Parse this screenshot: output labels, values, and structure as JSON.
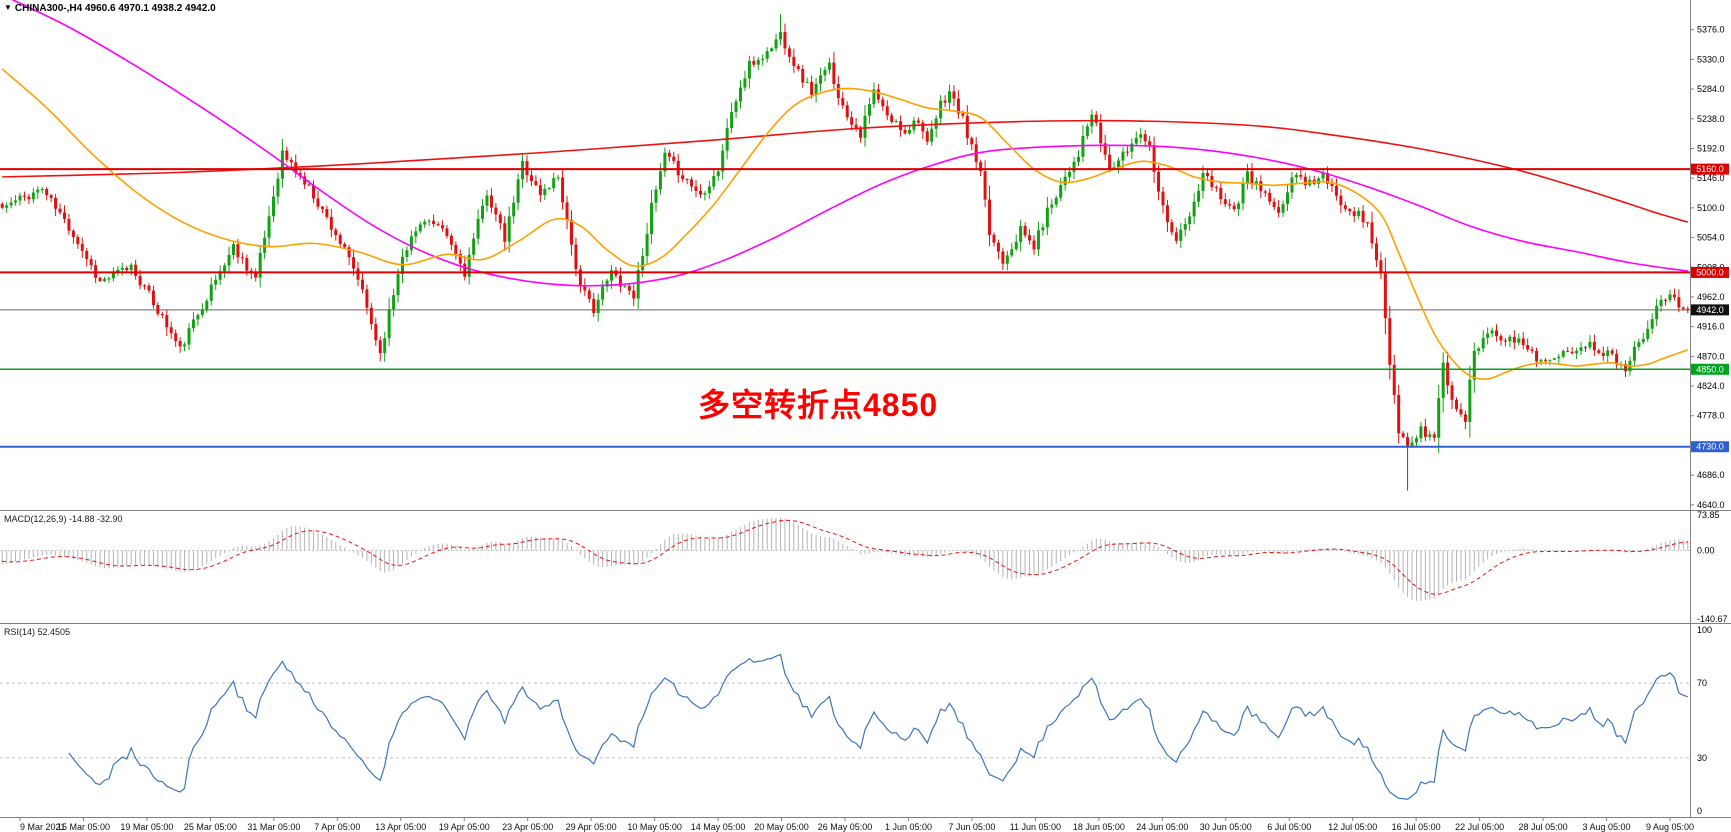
{
  "header": {
    "collapse_icon": "▼",
    "symbol": "CHINA300-,H4",
    "ohlc": "4960.6 4970.1 4938.2 4942.0"
  },
  "annotation": {
    "text": "多空转折点4850",
    "color": "#ff0000"
  },
  "indicator_labels": {
    "macd": "MACD(12,26,9) -14.88 -32.90",
    "rsi": "RSI(14) 52.4505"
  },
  "colors": {
    "bg": "#ffffff",
    "up": "#12a112",
    "down": "#e01010",
    "axis_text": "#000000",
    "pane_divider": "#808080",
    "axis_line": "#808080",
    "current_price_line": "#666666",
    "current_price_badge_bg": "#111111",
    "badge_text": "#ffffff",
    "time_text": "#111111"
  },
  "chart_data": {
    "type": "candlestick",
    "symbol": "CHINA300",
    "timeframe": "H4",
    "title": "CHINA300-,H4",
    "last_ohlc": {
      "open": 4960.6,
      "high": 4970.1,
      "low": 4938.2,
      "close": 4942.0
    },
    "current_price": 4942.0,
    "current_price_label": "4942.0",
    "price_axis": {
      "top_price": 5422,
      "bottom_price": 4632,
      "ticks": [
        5376,
        5330,
        5284,
        5238,
        5192,
        5146,
        5100,
        5054,
        5008,
        4962,
        4916,
        4870,
        4824,
        4778,
        4732,
        4686,
        4640
      ]
    },
    "time_axis_labels": [
      "9 Mar 2021",
      "15 Mar 05:00",
      "19 Mar 05:00",
      "25 Mar 05:00",
      "31 Mar 05:00",
      "7 Apr 05:00",
      "13 Apr 05:00",
      "19 Apr 05:00",
      "23 Apr 05:00",
      "29 Apr 05:00",
      "10 May 05:00",
      "14 May 05:00",
      "20 May 05:00",
      "26 May 05:00",
      "1 Jun 05:00",
      "7 Jun 05:00",
      "11 Jun 05:00",
      "18 Jun 05:00",
      "24 Jun 05:00",
      "30 Jun 05:00",
      "6 Jul 05:00",
      "12 Jul 05:00",
      "16 Jul 05:00",
      "22 Jul 05:00",
      "28 Jul 05:00",
      "3 Aug 05:00",
      "9 Aug 05:00"
    ],
    "horizontal_levels": [
      {
        "price": 5160.0,
        "label": "5160.0",
        "color": "#dd0000",
        "width": 2
      },
      {
        "price": 5000.0,
        "label": "5000.0",
        "color": "#dd0000",
        "width": 2
      },
      {
        "price": 4850.0,
        "label": "4850.0",
        "color": "#00a41e",
        "width": 1.5
      },
      {
        "price": 4730.0,
        "label": "4730.0",
        "color": "#2f5fd0",
        "width": 2
      }
    ],
    "n_bars": 380,
    "seed": 11,
    "noise": {
      "close": 16,
      "wick": 9
    },
    "close_keypoints": [
      [
        0,
        5100
      ],
      [
        9,
        5130
      ],
      [
        16,
        5060
      ],
      [
        22,
        4985
      ],
      [
        29,
        5010
      ],
      [
        36,
        4930
      ],
      [
        40,
        4880
      ],
      [
        45,
        4950
      ],
      [
        52,
        5040
      ],
      [
        57,
        4990
      ],
      [
        63,
        5185
      ],
      [
        70,
        5120
      ],
      [
        75,
        5060
      ],
      [
        80,
        4990
      ],
      [
        85,
        4875
      ],
      [
        90,
        5030
      ],
      [
        95,
        5085
      ],
      [
        100,
        5055
      ],
      [
        104,
        5000
      ],
      [
        109,
        5125
      ],
      [
        113,
        5050
      ],
      [
        117,
        5170
      ],
      [
        121,
        5120
      ],
      [
        125,
        5150
      ],
      [
        130,
        4975
      ],
      [
        133,
        4945
      ],
      [
        137,
        5000
      ],
      [
        142,
        4965
      ],
      [
        146,
        5100
      ],
      [
        149,
        5180
      ],
      [
        153,
        5150
      ],
      [
        157,
        5120
      ],
      [
        161,
        5160
      ],
      [
        164,
        5250
      ],
      [
        168,
        5320
      ],
      [
        172,
        5340
      ],
      [
        175,
        5370
      ],
      [
        179,
        5310
      ],
      [
        182,
        5280
      ],
      [
        186,
        5320
      ],
      [
        189,
        5255
      ],
      [
        193,
        5215
      ],
      [
        196,
        5280
      ],
      [
        199,
        5240
      ],
      [
        203,
        5220
      ],
      [
        206,
        5240
      ],
      [
        208,
        5195
      ],
      [
        211,
        5260
      ],
      [
        213,
        5280
      ],
      [
        216,
        5235
      ],
      [
        220,
        5150
      ],
      [
        222,
        5060
      ],
      [
        225,
        5020
      ],
      [
        229,
        5065
      ],
      [
        232,
        5040
      ],
      [
        235,
        5095
      ],
      [
        239,
        5150
      ],
      [
        242,
        5185
      ],
      [
        245,
        5245
      ],
      [
        249,
        5160
      ],
      [
        252,
        5180
      ],
      [
        256,
        5220
      ],
      [
        258,
        5195
      ],
      [
        261,
        5100
      ],
      [
        264,
        5050
      ],
      [
        267,
        5085
      ],
      [
        270,
        5150
      ],
      [
        274,
        5120
      ],
      [
        277,
        5095
      ],
      [
        280,
        5150
      ],
      [
        284,
        5120
      ],
      [
        287,
        5085
      ],
      [
        290,
        5150
      ],
      [
        294,
        5140
      ],
      [
        297,
        5150
      ],
      [
        300,
        5115
      ],
      [
        304,
        5095
      ],
      [
        307,
        5075
      ],
      [
        310,
        4995
      ],
      [
        312,
        4855
      ],
      [
        314,
        4750
      ],
      [
        316,
        4730
      ],
      [
        319,
        4755
      ],
      [
        322,
        4745
      ],
      [
        324,
        4860
      ],
      [
        326,
        4800
      ],
      [
        329,
        4775
      ],
      [
        331,
        4880
      ],
      [
        335,
        4915
      ],
      [
        338,
        4895
      ],
      [
        342,
        4890
      ],
      [
        345,
        4870
      ],
      [
        348,
        4860
      ],
      [
        352,
        4875
      ],
      [
        355,
        4890
      ],
      [
        358,
        4885
      ],
      [
        362,
        4870
      ],
      [
        365,
        4855
      ],
      [
        369,
        4905
      ],
      [
        372,
        4950
      ],
      [
        374,
        4965
      ],
      [
        377,
        4950
      ],
      [
        379,
        4942
      ]
    ],
    "spikes": [
      {
        "i": 175,
        "high": 5400
      },
      {
        "i": 316,
        "low": 4662
      },
      {
        "i": 365,
        "low": 4838
      }
    ],
    "moving_averages": [
      {
        "name": "slow-ma-red",
        "color": "#ee1111",
        "width": 1.6,
        "points": [
          [
            0,
            5148
          ],
          [
            40,
            5155
          ],
          [
            80,
            5168
          ],
          [
            120,
            5185
          ],
          [
            160,
            5205
          ],
          [
            190,
            5222
          ],
          [
            220,
            5232
          ],
          [
            250,
            5235
          ],
          [
            280,
            5228
          ],
          [
            300,
            5212
          ],
          [
            320,
            5190
          ],
          [
            340,
            5160
          ],
          [
            355,
            5130
          ],
          [
            365,
            5108
          ],
          [
            372,
            5092
          ],
          [
            379,
            5078
          ]
        ]
      },
      {
        "name": "mid-ma-magenta",
        "color": "#ff00ff",
        "width": 1.6,
        "points": [
          [
            0,
            5430
          ],
          [
            15,
            5380
          ],
          [
            30,
            5320
          ],
          [
            45,
            5255
          ],
          [
            60,
            5185
          ],
          [
            72,
            5125
          ],
          [
            84,
            5070
          ],
          [
            96,
            5028
          ],
          [
            108,
            5000
          ],
          [
            122,
            4983
          ],
          [
            136,
            4980
          ],
          [
            150,
            4992
          ],
          [
            162,
            5018
          ],
          [
            174,
            5055
          ],
          [
            186,
            5098
          ],
          [
            198,
            5138
          ],
          [
            210,
            5168
          ],
          [
            222,
            5188
          ],
          [
            240,
            5196
          ],
          [
            258,
            5196
          ],
          [
            270,
            5190
          ],
          [
            282,
            5178
          ],
          [
            294,
            5160
          ],
          [
            306,
            5135
          ],
          [
            318,
            5105
          ],
          [
            330,
            5072
          ],
          [
            342,
            5048
          ],
          [
            354,
            5032
          ],
          [
            366,
            5015
          ],
          [
            379,
            5002
          ]
        ]
      },
      {
        "name": "fast-ma-orange",
        "color": "#ffa000",
        "width": 1.6,
        "points": [
          [
            0,
            5315
          ],
          [
            10,
            5255
          ],
          [
            20,
            5185
          ],
          [
            30,
            5125
          ],
          [
            40,
            5080
          ],
          [
            50,
            5052
          ],
          [
            60,
            5040
          ],
          [
            70,
            5045
          ],
          [
            80,
            5032
          ],
          [
            90,
            5012
          ],
          [
            100,
            5028
          ],
          [
            108,
            5020
          ],
          [
            116,
            5048
          ],
          [
            124,
            5082
          ],
          [
            130,
            5072
          ],
          [
            136,
            5035
          ],
          [
            142,
            5010
          ],
          [
            148,
            5022
          ],
          [
            154,
            5060
          ],
          [
            160,
            5105
          ],
          [
            166,
            5160
          ],
          [
            172,
            5215
          ],
          [
            178,
            5258
          ],
          [
            184,
            5278
          ],
          [
            190,
            5285
          ],
          [
            196,
            5280
          ],
          [
            202,
            5268
          ],
          [
            208,
            5255
          ],
          [
            214,
            5250
          ],
          [
            220,
            5240
          ],
          [
            226,
            5200
          ],
          [
            232,
            5160
          ],
          [
            238,
            5140
          ],
          [
            244,
            5145
          ],
          [
            250,
            5160
          ],
          [
            256,
            5172
          ],
          [
            262,
            5165
          ],
          [
            268,
            5148
          ],
          [
            274,
            5140
          ],
          [
            280,
            5138
          ],
          [
            286,
            5135
          ],
          [
            292,
            5138
          ],
          [
            298,
            5140
          ],
          [
            304,
            5125
          ],
          [
            310,
            5090
          ],
          [
            314,
            5030
          ],
          [
            318,
            4965
          ],
          [
            322,
            4905
          ],
          [
            326,
            4865
          ],
          [
            330,
            4840
          ],
          [
            334,
            4835
          ],
          [
            338,
            4845
          ],
          [
            342,
            4855
          ],
          [
            346,
            4860
          ],
          [
            350,
            4858
          ],
          [
            354,
            4855
          ],
          [
            358,
            4858
          ],
          [
            362,
            4860
          ],
          [
            366,
            4855
          ],
          [
            370,
            4858
          ],
          [
            374,
            4868
          ],
          [
            379,
            4880
          ]
        ]
      }
    ],
    "macd": {
      "params": "12,26,9",
      "value": -14.88,
      "signal": -32.9,
      "axis_max": 73.85,
      "axis_min": -140.67,
      "axis_labels": [
        "73.85",
        "0.00",
        "-140.67"
      ],
      "histogram_color": "#b4b4b4",
      "signal_color": "#ee1111"
    },
    "rsi": {
      "period": 14,
      "value": 52.4505,
      "axis_labels": [
        "100",
        "70",
        "30",
        "0"
      ],
      "axis_values": [
        100,
        70,
        30,
        0
      ],
      "levels": [
        70,
        30
      ],
      "line_color": "#3b77bb",
      "level_line_color": "#c0c0c0"
    }
  }
}
